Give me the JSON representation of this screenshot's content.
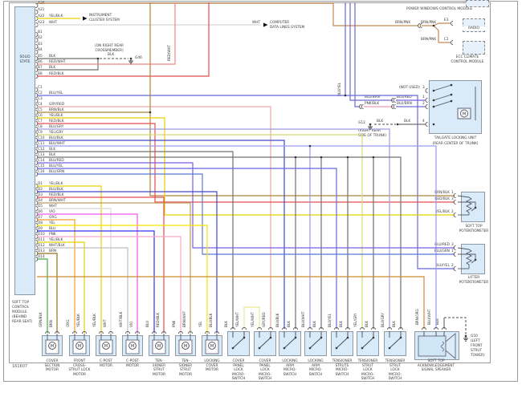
{
  "page": {
    "part_number": "161607"
  },
  "palette": {
    "BLK": "#707070",
    "WHT": "#d8d8d8",
    "WHT/BLK": "#bfbfbf",
    "YEL": "#f2e400",
    "YEL/BLK": "#e6d200",
    "YEL/WHT": "#e9e98f",
    "YEL/GRY": "#d8d870",
    "RED/WHT": "#ef8686",
    "RED/BLK": "#e64c4c",
    "GRY/RED": "#eaa8a8",
    "BRN": "#9a6f1f",
    "BRN/BLK": "#ad843a",
    "BRN/WHT": "#c29a60",
    "BRN/PNK": "#c28a50",
    "BRN/ORG": "#cc8c2e",
    "ORG": "#f89b2f",
    "PNK": "#f6a8c6",
    "PNK/BLK": "#ee9cb6",
    "VIO": "#ee55ee",
    "BLU": "#3434e8",
    "BLU/YEL": "#6767dd",
    "BLU/BLK": "#4646cc",
    "BLU/WHT": "#9a9af0",
    "BLU/GRY": "#9c9cdd",
    "BLU/RED": "#7c5ce2",
    "BLU/GRN": "#5678d8",
    "BLU/BRN": "#6c6cd0",
    "GRN/BLK": "#46aa46"
  },
  "left_module": {
    "name_lines": [
      "SOLID",
      "STATE"
    ],
    "caption_lines": [
      "SOFT TOP",
      "CONTROL",
      "MODULE",
      "(BEHIND",
      "REAR SEAT)"
    ],
    "groups": [
      {
        "pins": [
          {
            "id": "A20",
            "color": ""
          },
          {
            "id": "A21",
            "color": ""
          },
          {
            "id": "A22",
            "color": "YEL/BLK"
          },
          {
            "id": "A23",
            "color": "WHT"
          }
        ]
      },
      {
        "pins": [
          {
            "id": "B1",
            "color": ""
          },
          {
            "id": "B2",
            "color": ""
          },
          {
            "id": "B3",
            "color": ""
          },
          {
            "id": "B4",
            "color": ""
          },
          {
            "id": "B5",
            "color": "BLK"
          },
          {
            "id": "B6",
            "color": "RED/WHT"
          },
          {
            "id": "B7",
            "color": "BLK"
          },
          {
            "id": "B8",
            "color": "RED/BLK"
          }
        ]
      },
      {
        "pins": [
          {
            "id": "C1",
            "color": ""
          },
          {
            "id": "C2",
            "color": "BLU/YEL"
          },
          {
            "id": "C3",
            "color": ""
          },
          {
            "id": "C4",
            "color": "GRY/RED"
          },
          {
            "id": "C5",
            "color": "BRN/BLK"
          },
          {
            "id": "C6",
            "color": "YEL/BLK"
          },
          {
            "id": "C7",
            "color": "RED/BLK"
          },
          {
            "id": "C8",
            "color": "BLU/GRY"
          },
          {
            "id": "C9",
            "color": "YEL/GRY"
          },
          {
            "id": "C10",
            "color": "BLU/BLK"
          },
          {
            "id": "C11",
            "color": "BLU/WHT"
          },
          {
            "id": "C12",
            "color": "BLK"
          },
          {
            "id": "C13",
            "color": "BLK"
          },
          {
            "id": "C14",
            "color": "BLU/RED"
          },
          {
            "id": "C15",
            "color": "BLU/YEL"
          },
          {
            "id": "C16",
            "color": "BLU/GRN"
          }
        ]
      },
      {
        "pins": [
          {
            "id": "D1",
            "color": "YEL/BLK"
          },
          {
            "id": "D2",
            "color": "BLU/BLK"
          },
          {
            "id": "D3",
            "color": "RED/BLK"
          },
          {
            "id": "D4",
            "color": "BRN/WHT"
          },
          {
            "id": "D5",
            "color": "WHT"
          },
          {
            "id": "D6",
            "color": "VIO"
          },
          {
            "id": "D7",
            "color": "ORG"
          },
          {
            "id": "D8",
            "color": "YEL"
          },
          {
            "id": "D9",
            "color": "BLU"
          },
          {
            "id": "D10",
            "color": "PNK"
          },
          {
            "id": "D11",
            "color": "YEL/BLK"
          },
          {
            "id": "D12",
            "color": "WHT/BLK"
          },
          {
            "id": "D13",
            "color": "BRN"
          },
          {
            "id": "D14",
            "color": ""
          }
        ]
      }
    ]
  },
  "top": {
    "instrument_cluster": {
      "wire": "YEL/BLK",
      "lines": [
        "INSTRUMENT",
        "CLUSTER SYSTEM"
      ]
    },
    "data_lines": {
      "wire": "WHT",
      "lines": [
        "COMPUTER",
        "DATA LINES SYSTEM"
      ]
    },
    "crossmember_note": [
      "(ON RIGHT REAR",
      "CROSSMEMBER)"
    ],
    "g46": "G46",
    "blk": "BLK"
  },
  "right": {
    "power_windows": "POWER WINDOWS CONTROL MODULE",
    "radio": {
      "label": "RADIO",
      "pin": "E3"
    },
    "ecc": {
      "label_lines": [
        "ECC CLIMATE",
        "CONTROL MODULE"
      ],
      "pin": "C1"
    },
    "bus_wire": "BRN/PNK",
    "tailgate": {
      "caption_lines": [
        "TAILGATE LOCKING UNIT",
        "(REAR CENTER OF TRUNK)"
      ],
      "not_used": "(NOT USED)",
      "pins": [
        {
          "num": "3",
          "outer": "",
          "inner": ""
        },
        {
          "num": "1",
          "outer": "BLU/BRN",
          "inner": "BLU/RED"
        },
        {
          "num": "2",
          "outer": "PNK/BLK",
          "inner": "BLU/BRN"
        },
        {
          "num": "4",
          "outer": "BLK",
          "inner": "BLK"
        }
      ],
      "ground": {
        "id": "G12",
        "note_lines": [
          "(RIGHT REAR",
          "SIDE OF TRUNK)"
        ]
      }
    },
    "soft_top_pot": {
      "caption_lines": [
        "SOFT TOP",
        "POTENTIOMETER"
      ],
      "pins": [
        {
          "num": "1",
          "wire": "BRN/BLK"
        },
        {
          "num": "3",
          "wire": "RED/BLK"
        },
        {
          "num": "2",
          "wire": "YEL/BLK"
        }
      ]
    },
    "lifter_pot": {
      "caption_lines": [
        "LIFTER",
        "POTENTIOMETER"
      ],
      "pins": [
        {
          "num": "3",
          "wire": "BLU/RED"
        },
        {
          "num": "1",
          "wire": "BLU/GRN"
        },
        {
          "num": "2",
          "wire": "BLU/YEL"
        }
      ]
    }
  },
  "bottom": {
    "components": [
      {
        "type": "motor",
        "caption_lines": [
          "COVER",
          "SECTION",
          "MOTOR"
        ],
        "wires": [
          "GRN/BLK",
          "BRN"
        ]
      },
      {
        "type": "motor",
        "caption_lines": [
          "FRONT",
          "CROSS-",
          "STRUT LOCK",
          "MOTOR"
        ],
        "wires": [
          "ORG",
          "YEL/BLK"
        ]
      },
      {
        "type": "motor",
        "caption_lines": [
          "C-POST",
          "MOTOR"
        ],
        "wires": [
          "YEL/BLK",
          "WHT"
        ]
      },
      {
        "type": "motor",
        "caption_lines": [
          "C-POST",
          "MOTOR"
        ],
        "wires": [
          "WHT/BLK",
          "VIO"
        ]
      },
      {
        "type": "motor",
        "caption_lines": [
          "TEN-",
          "SIONER",
          "STRUT",
          "MOTOR"
        ],
        "wires": [
          "BLU",
          "RED/BLK"
        ]
      },
      {
        "type": "motor",
        "caption_lines": [
          "TEN-",
          "SIONER",
          "STRUT",
          "MOTOR"
        ],
        "wires": [
          "PNK",
          "BRN/WHT"
        ]
      },
      {
        "type": "motor",
        "caption_lines": [
          "LOCKING",
          "COVER",
          "MOTOR"
        ],
        "wires": [
          "YEL",
          "BLU/BLK"
        ]
      },
      {
        "type": "switch",
        "caption_lines": [
          "COVER",
          "PANEL",
          "LOCK",
          "MICRO-",
          "SWITCH"
        ],
        "wires": [
          "BLK",
          "YEL/WHT"
        ]
      },
      {
        "type": "switch",
        "caption_lines": [
          "COVER",
          "PANEL",
          "LOCK",
          "MICRO-",
          "SWITCH"
        ],
        "wires": [
          "YEL/WHT",
          "GRY/RED"
        ]
      },
      {
        "type": "switch",
        "caption_lines": [
          "LOCKING",
          "ARM",
          "MICRO-",
          "SWITCH"
        ],
        "wires": [
          "BLU/BLK",
          "BLK"
        ]
      },
      {
        "type": "switch",
        "caption_lines": [
          "LOCKING",
          "ARM",
          "MICRO-",
          "SWITCH"
        ],
        "wires": [
          "BLU/WHT",
          "BLK"
        ]
      },
      {
        "type": "switch",
        "caption_lines": [
          "TENSIONER",
          "STRUTS",
          "MICRO-",
          "SWITCH"
        ],
        "wires": [
          "BLU/YEL",
          "BLK"
        ]
      },
      {
        "type": "switch",
        "caption_lines": [
          "TENSIONER",
          "STRUT",
          "LOCK",
          "MICRO-",
          "SWITCH"
        ],
        "wires": [
          "YEL/GRY",
          "BLK"
        ]
      },
      {
        "type": "switch",
        "caption_lines": [
          "TENSIONER",
          "STRUT",
          "LOCK",
          "MICRO-",
          "SWITCH"
        ],
        "wires": [
          "BLU/GRY",
          "BLK"
        ]
      },
      {
        "type": "speaker",
        "caption_lines": [
          "SOFT TOP",
          "ACKNOWLEDGEMENT",
          "SIGNAL SPEAKER"
        ],
        "wires": [
          "BRN/ORG",
          "BLU/WHT",
          "BLK"
        ]
      }
    ],
    "g50_lines": [
      "G50",
      "(LEFT",
      "FRONT",
      "STRUT",
      "TOWER)"
    ]
  },
  "vertical_labels": {
    "red_wht": "RED/WHT",
    "blu_yel": "BLU/YEL"
  }
}
